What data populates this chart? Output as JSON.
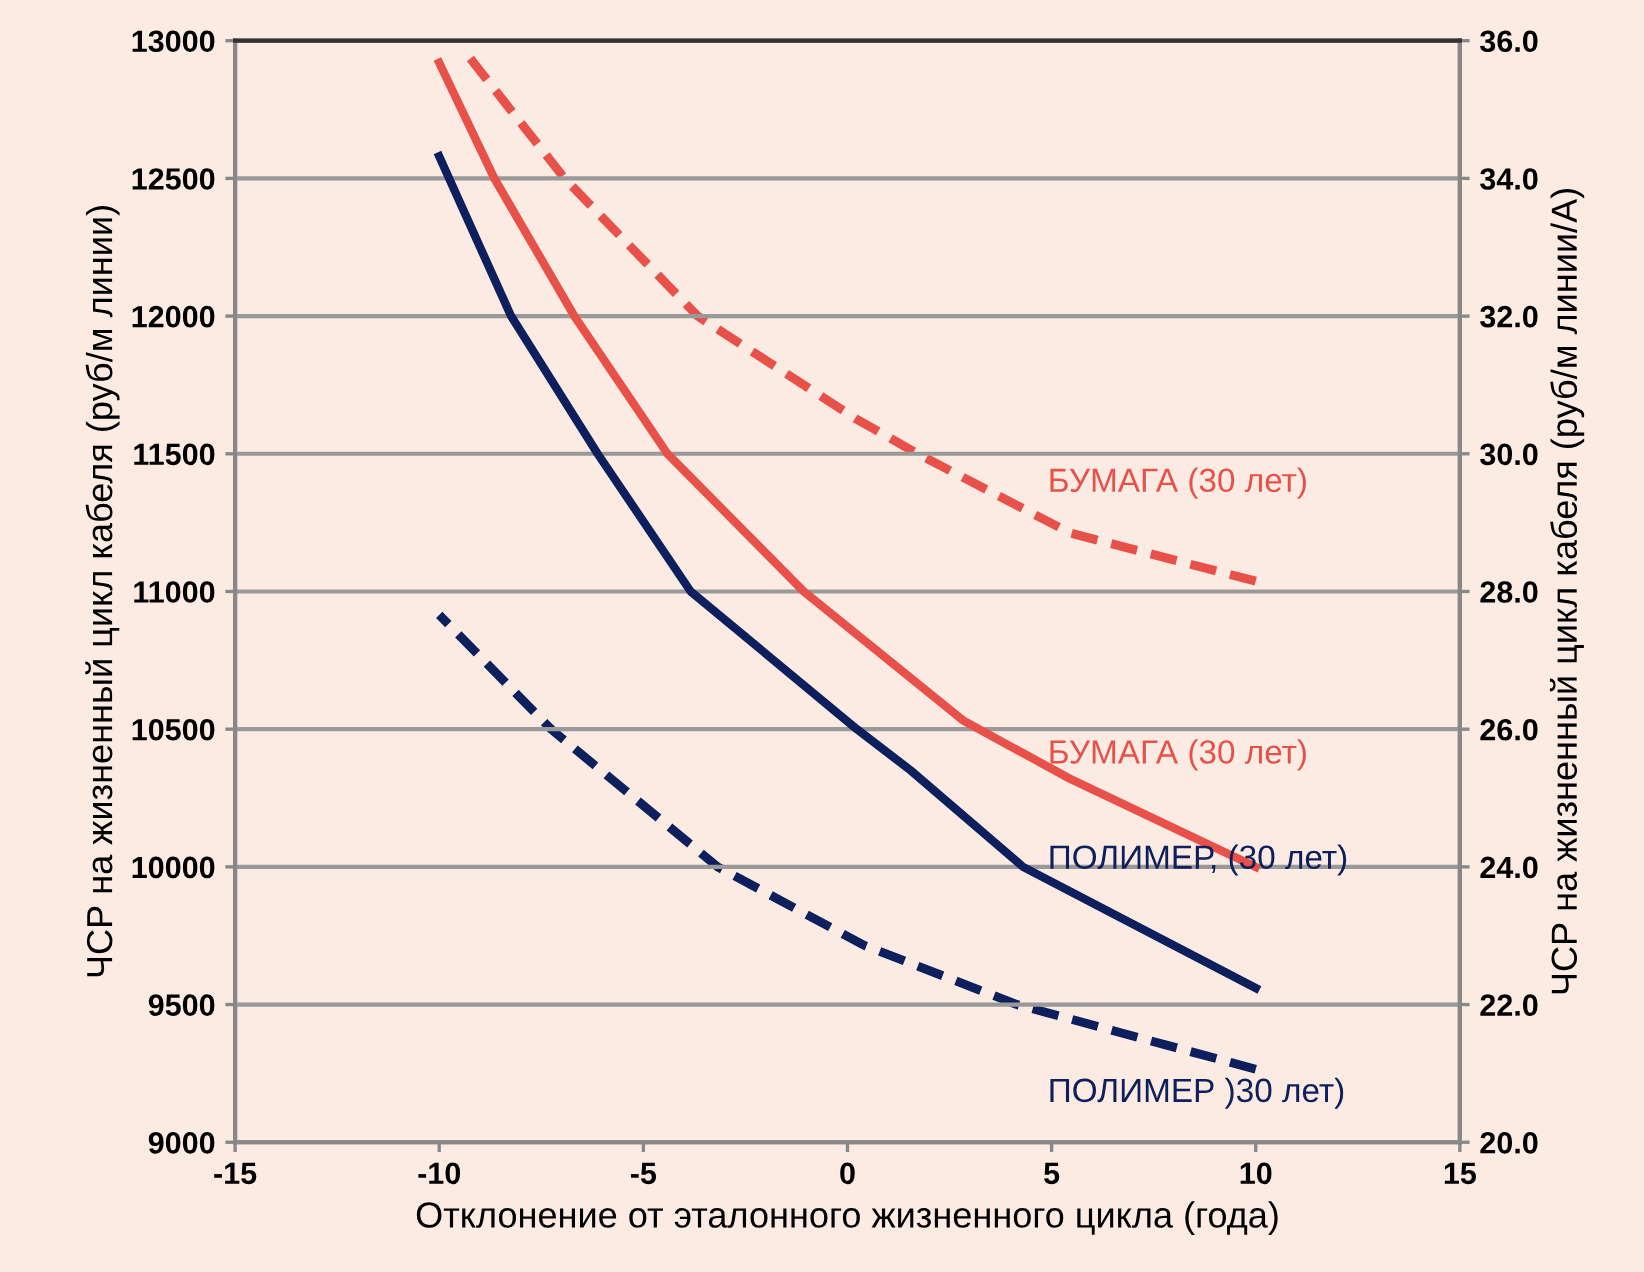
{
  "chart_data": {
    "type": "line",
    "xlabel": "Отклонение от эталонного жизненного цикла (года)",
    "ylabel": "ЧСР на жизненный цикл кабеля (руб/м линии)",
    "y2label": "ЧСР на жизненный цикл кабеля (руб/м линии/А)",
    "xlim": [
      -15,
      15
    ],
    "xticks": [
      -15,
      -10,
      -5,
      0,
      5,
      10,
      15
    ],
    "ylim": [
      9000,
      13000
    ],
    "yticks": [
      9000,
      9500,
      10000,
      10500,
      11000,
      11500,
      12000,
      12500,
      13000
    ],
    "y2lim": [
      20,
      36
    ],
    "y2ticks": [
      {
        "value": 20,
        "label": "20.0"
      },
      {
        "value": 22,
        "label": "22.0"
      },
      {
        "value": 24,
        "label": "24.0"
      },
      {
        "value": 26,
        "label": "26.0"
      },
      {
        "value": 28,
        "label": "28.0"
      },
      {
        "value": 30,
        "label": "30.0"
      },
      {
        "value": 32,
        "label": "32.0"
      },
      {
        "value": 34,
        "label": "34.0"
      },
      {
        "value": 36,
        "label": "36.0"
      }
    ],
    "grid": "y",
    "legend": false,
    "marker": "none",
    "series": [
      {
        "name": "БУМАГА (30 лет)",
        "color": "#e8504a",
        "axis": "y2",
        "line_style": "dashed",
        "x": [
          -9.45,
          -6.93,
          -3.67,
          0.23,
          1.72,
          5.45,
          10
        ],
        "values": [
          35.9,
          34.0,
          32.0,
          30.5,
          30.0,
          28.85,
          28.15
        ]
      },
      {
        "name": "БУМАГА (30 лет)",
        "color": "#e8504a",
        "axis": "y",
        "line_style": "solid",
        "x": [
          -10,
          -8.65,
          -6.69,
          -4.41,
          -1.07,
          2.85,
          5.45,
          10
        ],
        "values": [
          12920,
          12500,
          12000,
          11500,
          11000,
          10530,
          10320,
          10000
        ]
      },
      {
        "name": "ПОЛИМЕР, (30 лет)",
        "color": "#0d1f5c",
        "axis": "y",
        "line_style": "solid",
        "x": [
          -10,
          -8.24,
          -6.12,
          -3.84,
          0.23,
          1.55,
          4.3,
          10
        ],
        "values": [
          12580,
          12000,
          11500,
          11000,
          10500,
          10350,
          10000,
          9560
        ]
      },
      {
        "name": "ПОЛИМЕР )30 лет)",
        "color": "#0d1f5c",
        "axis": "y2",
        "line_style": "dashed",
        "x": [
          -10,
          -7.26,
          -3.18,
          0.41,
          4.15,
          10
        ],
        "values": [
          27.66,
          26.0,
          24.0,
          22.86,
          22.0,
          21.06
        ]
      }
    ]
  }
}
